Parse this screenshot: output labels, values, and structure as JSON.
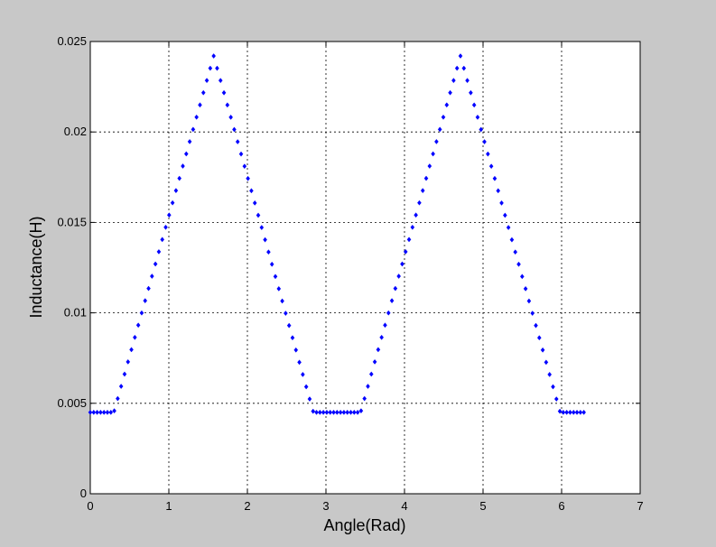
{
  "chart_data": {
    "type": "scatter",
    "title": "",
    "xlabel": "Angle(Rad)",
    "ylabel": "Inductance(H)",
    "xlim": [
      0,
      7
    ],
    "ylim": [
      0,
      0.025
    ],
    "x_ticks": [
      0,
      1,
      2,
      3,
      4,
      5,
      6,
      7
    ],
    "y_ticks": [
      0,
      0.005,
      0.01,
      0.015,
      0.02,
      0.025
    ],
    "x_tick_labels": [
      "0",
      "1",
      "2",
      "3",
      "4",
      "5",
      "6",
      "7"
    ],
    "y_tick_labels": [
      "0",
      "0.005",
      "0.01",
      "0.015",
      "0.02",
      "0.025"
    ],
    "grid": true,
    "grid_style": "dotted",
    "marker": "diamond",
    "colors": {
      "series": "#0000ff",
      "background": "#c8c8c8",
      "plot_area": "#ffffff",
      "grid": "#000000"
    },
    "series": [
      {
        "x_range": [
          0,
          6.2832
        ],
        "num_points": 145,
        "profile": {
          "type": "piecewise-linear-periodic",
          "period": 3.1416,
          "min_value": 0.0045,
          "max_value": 0.0242,
          "flat_until": 0.3,
          "peak_at": 1.5708,
          "rise_back_to_min_at": 2.84
        }
      }
    ]
  }
}
